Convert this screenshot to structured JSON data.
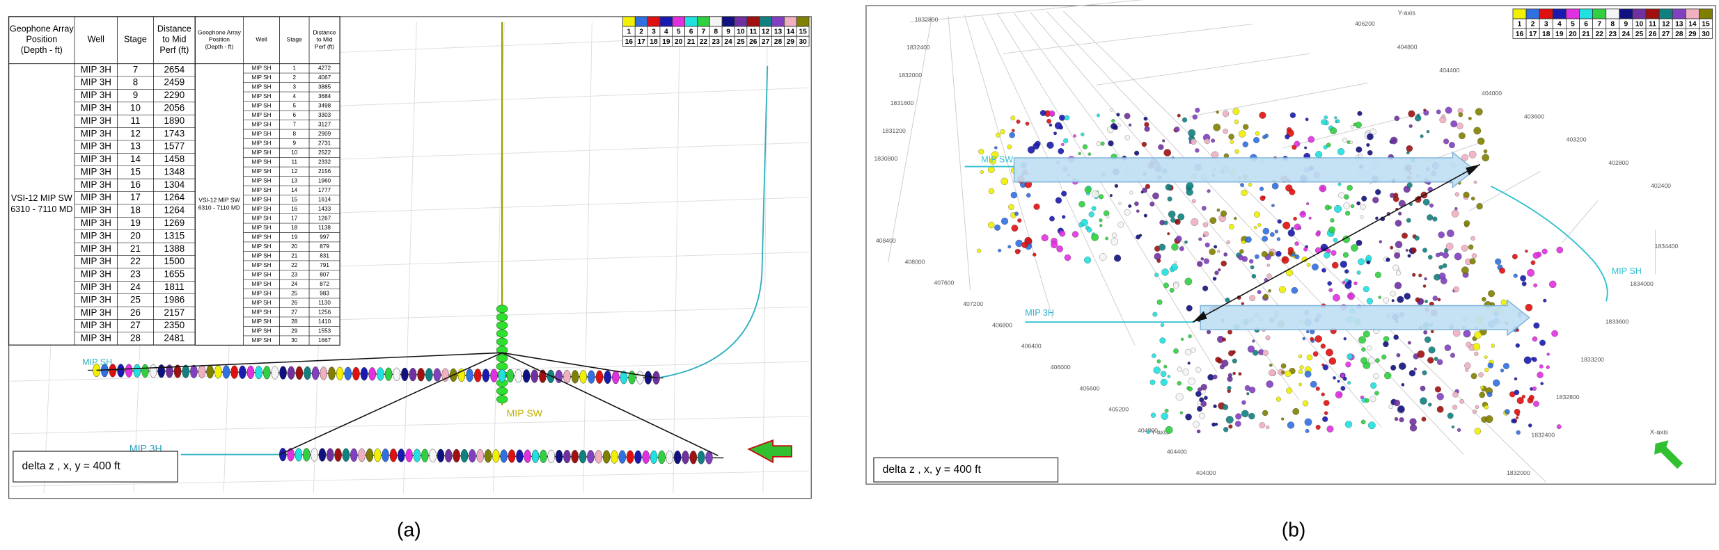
{
  "panel_a": {
    "caption": "(a)",
    "table_left": {
      "headers": [
        "Geophone Array Position (Depth - ft)",
        "Well",
        "Stage",
        "Distance to Mid Perf (ft)"
      ],
      "group": "VSI-12 MIP SW 6310 - 7110 MD",
      "rows": [
        [
          "MIP 3H",
          7,
          2654
        ],
        [
          "MIP 3H",
          8,
          2459
        ],
        [
          "MIP 3H",
          9,
          2290
        ],
        [
          "MIP 3H",
          10,
          2056
        ],
        [
          "MIP 3H",
          11,
          1890
        ],
        [
          "MIP 3H",
          12,
          1743
        ],
        [
          "MIP 3H",
          13,
          1577
        ],
        [
          "MIP 3H",
          14,
          1458
        ],
        [
          "MIP 3H",
          15,
          1348
        ],
        [
          "MIP 3H",
          16,
          1304
        ],
        [
          "MIP 3H",
          17,
          1264
        ],
        [
          "MIP 3H",
          18,
          1264
        ],
        [
          "MIP 3H",
          19,
          1269
        ],
        [
          "MIP 3H",
          20,
          1315
        ],
        [
          "MIP 3H",
          21,
          1388
        ],
        [
          "MIP 3H",
          22,
          1500
        ],
        [
          "MIP 3H",
          23,
          1655
        ],
        [
          "MIP 3H",
          24,
          1811
        ],
        [
          "MIP 3H",
          25,
          1986
        ],
        [
          "MIP 3H",
          26,
          2157
        ],
        [
          "MIP 3H",
          27,
          2350
        ],
        [
          "MIP 3H",
          28,
          2481
        ]
      ]
    },
    "table_right": {
      "headers": [
        "Geophone Array Position (Depth - ft)",
        "Well",
        "Stage",
        "Distance to Mid Perf (ft)"
      ],
      "group": "VSI-12 MIP SW 6310 - 7110 MD",
      "rows": [
        [
          "MIP SH",
          1,
          4272
        ],
        [
          "MIP SH",
          2,
          4067
        ],
        [
          "MIP SH",
          3,
          3885
        ],
        [
          "MIP SH",
          4,
          3684
        ],
        [
          "MIP SH",
          5,
          3498
        ],
        [
          "MIP SH",
          6,
          3303
        ],
        [
          "MIP SH",
          7,
          3127
        ],
        [
          "MIP SH",
          8,
          2909
        ],
        [
          "MIP SH",
          9,
          2731
        ],
        [
          "MIP SH",
          10,
          2522
        ],
        [
          "MIP SH",
          11,
          2332
        ],
        [
          "MIP SH",
          12,
          2156
        ],
        [
          "MIP SH",
          13,
          1960
        ],
        [
          "MIP SH",
          14,
          1777
        ],
        [
          "MIP SH",
          15,
          1614
        ],
        [
          "MIP SH",
          16,
          1433
        ],
        [
          "MIP SH",
          17,
          1267
        ],
        [
          "MIP SH",
          18,
          1138
        ],
        [
          "MIP SH",
          19,
          997
        ],
        [
          "MIP SH",
          20,
          879
        ],
        [
          "MIP SH",
          21,
          831
        ],
        [
          "MIP SH",
          22,
          791
        ],
        [
          "MIP SH",
          23,
          807
        ],
        [
          "MIP SH",
          24,
          872
        ],
        [
          "MIP SH",
          25,
          983
        ],
        [
          "MIP SH",
          26,
          1130
        ],
        [
          "MIP SH",
          27,
          1256
        ],
        [
          "MIP SH",
          28,
          1410
        ],
        [
          "MIP SH",
          29,
          1553
        ],
        [
          "MIP SH",
          30,
          1667
        ]
      ]
    },
    "labels": {
      "well_sh": "MIP SH",
      "well_sw": "MIP SW",
      "well_3h": "MIP 3H"
    },
    "note": "delta z , x, y = 400 ft"
  },
  "panel_b": {
    "caption": "(b)",
    "labels": {
      "well_sw": "MIP SW",
      "well_3h": "MIP 3H",
      "well_sh": "MIP SH",
      "y_axis": "Y-axis",
      "x_axis": "X-axis"
    },
    "note": "delta z , x, y = 400 ft",
    "ticks_left": [
      "1832800",
      "1832400",
      "1832000",
      "1831600",
      "1831200",
      "1830800"
    ],
    "ticks_top_right": [
      "406200",
      "404800",
      "404400",
      "404000",
      "403600",
      "403200",
      "402800",
      "402400"
    ],
    "ticks_bottom_left": [
      "408400",
      "408000",
      "407600",
      "407200",
      "406800",
      "406400",
      "406000",
      "405600",
      "405200",
      "404800",
      "404400",
      "404000"
    ],
    "ticks_bottom_right": [
      "1834400",
      "1834000",
      "1833600",
      "1833200",
      "1832800",
      "1832400",
      "1832000"
    ]
  },
  "legend": {
    "stages": [
      1,
      2,
      3,
      4,
      5,
      6,
      7,
      8,
      9,
      10,
      11,
      12,
      13,
      14,
      15,
      16,
      17,
      18,
      19,
      20,
      21,
      22,
      23,
      24,
      25,
      26,
      27,
      28,
      29,
      30
    ],
    "colors": [
      "#f0f000",
      "#3070e0",
      "#e01010",
      "#1a1ab0",
      "#e030e0",
      "#20e0e0",
      "#30d040",
      "#f4f4f4",
      "#101080",
      "#7030a0",
      "#a01010",
      "#108080",
      "#8040c0",
      "#f0b0c0",
      "#808000"
    ]
  }
}
